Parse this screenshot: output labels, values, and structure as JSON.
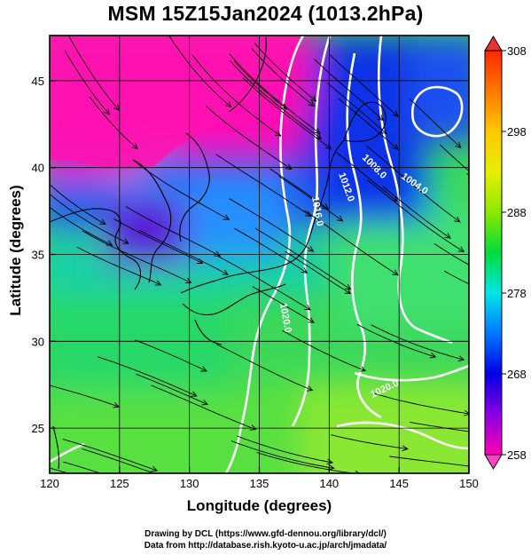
{
  "title": "MSM 15Z15Jan2024 (1013.2hPa)",
  "chart_data": {
    "type": "heatmap",
    "title": "MSM 15Z15Jan2024 (1013.2hPa)",
    "xlabel": "Longitude (degrees)",
    "ylabel": "Latitude  (degrees)",
    "xlim": [
      120,
      150
    ],
    "ylim": [
      22.4,
      47.6
    ],
    "xticks": [
      120,
      125,
      130,
      135,
      140,
      145,
      150
    ],
    "yticks": [
      25,
      30,
      35,
      40,
      45
    ],
    "grid": true,
    "colorbar": {
      "min": 258,
      "max": 308,
      "ticks": [
        258,
        268,
        278,
        288,
        298,
        308
      ],
      "colors": [
        "#ff00b4",
        "#8800e0",
        "#0000e6",
        "#0078ff",
        "#00e6e6",
        "#00e000",
        "#b8f000",
        "#ffff00",
        "#ffb400",
        "#ff3000"
      ]
    },
    "contours": [
      {
        "label": "1016.0",
        "color": "#ffffff"
      },
      {
        "label": "1012.0",
        "color": "#ffffff"
      },
      {
        "label": "1008.0",
        "color": "#ffffff"
      },
      {
        "label": "1004.0",
        "color": "#ffffff"
      },
      {
        "label": "1020.0",
        "color": "#ffffff"
      }
    ],
    "streamlines": "wind field, predominantly north-westerly monsoon flow over Japan"
  },
  "xlabel": "Longitude (degrees)",
  "ylabel": "Latitude  (degrees)",
  "credits": {
    "line1": "Drawing by DCL (https://www.gfd-dennou.org/library/dcl/)",
    "line2": "Data from http://database.rish.kyoto-u.ac.jp/arch/jmadata/"
  }
}
